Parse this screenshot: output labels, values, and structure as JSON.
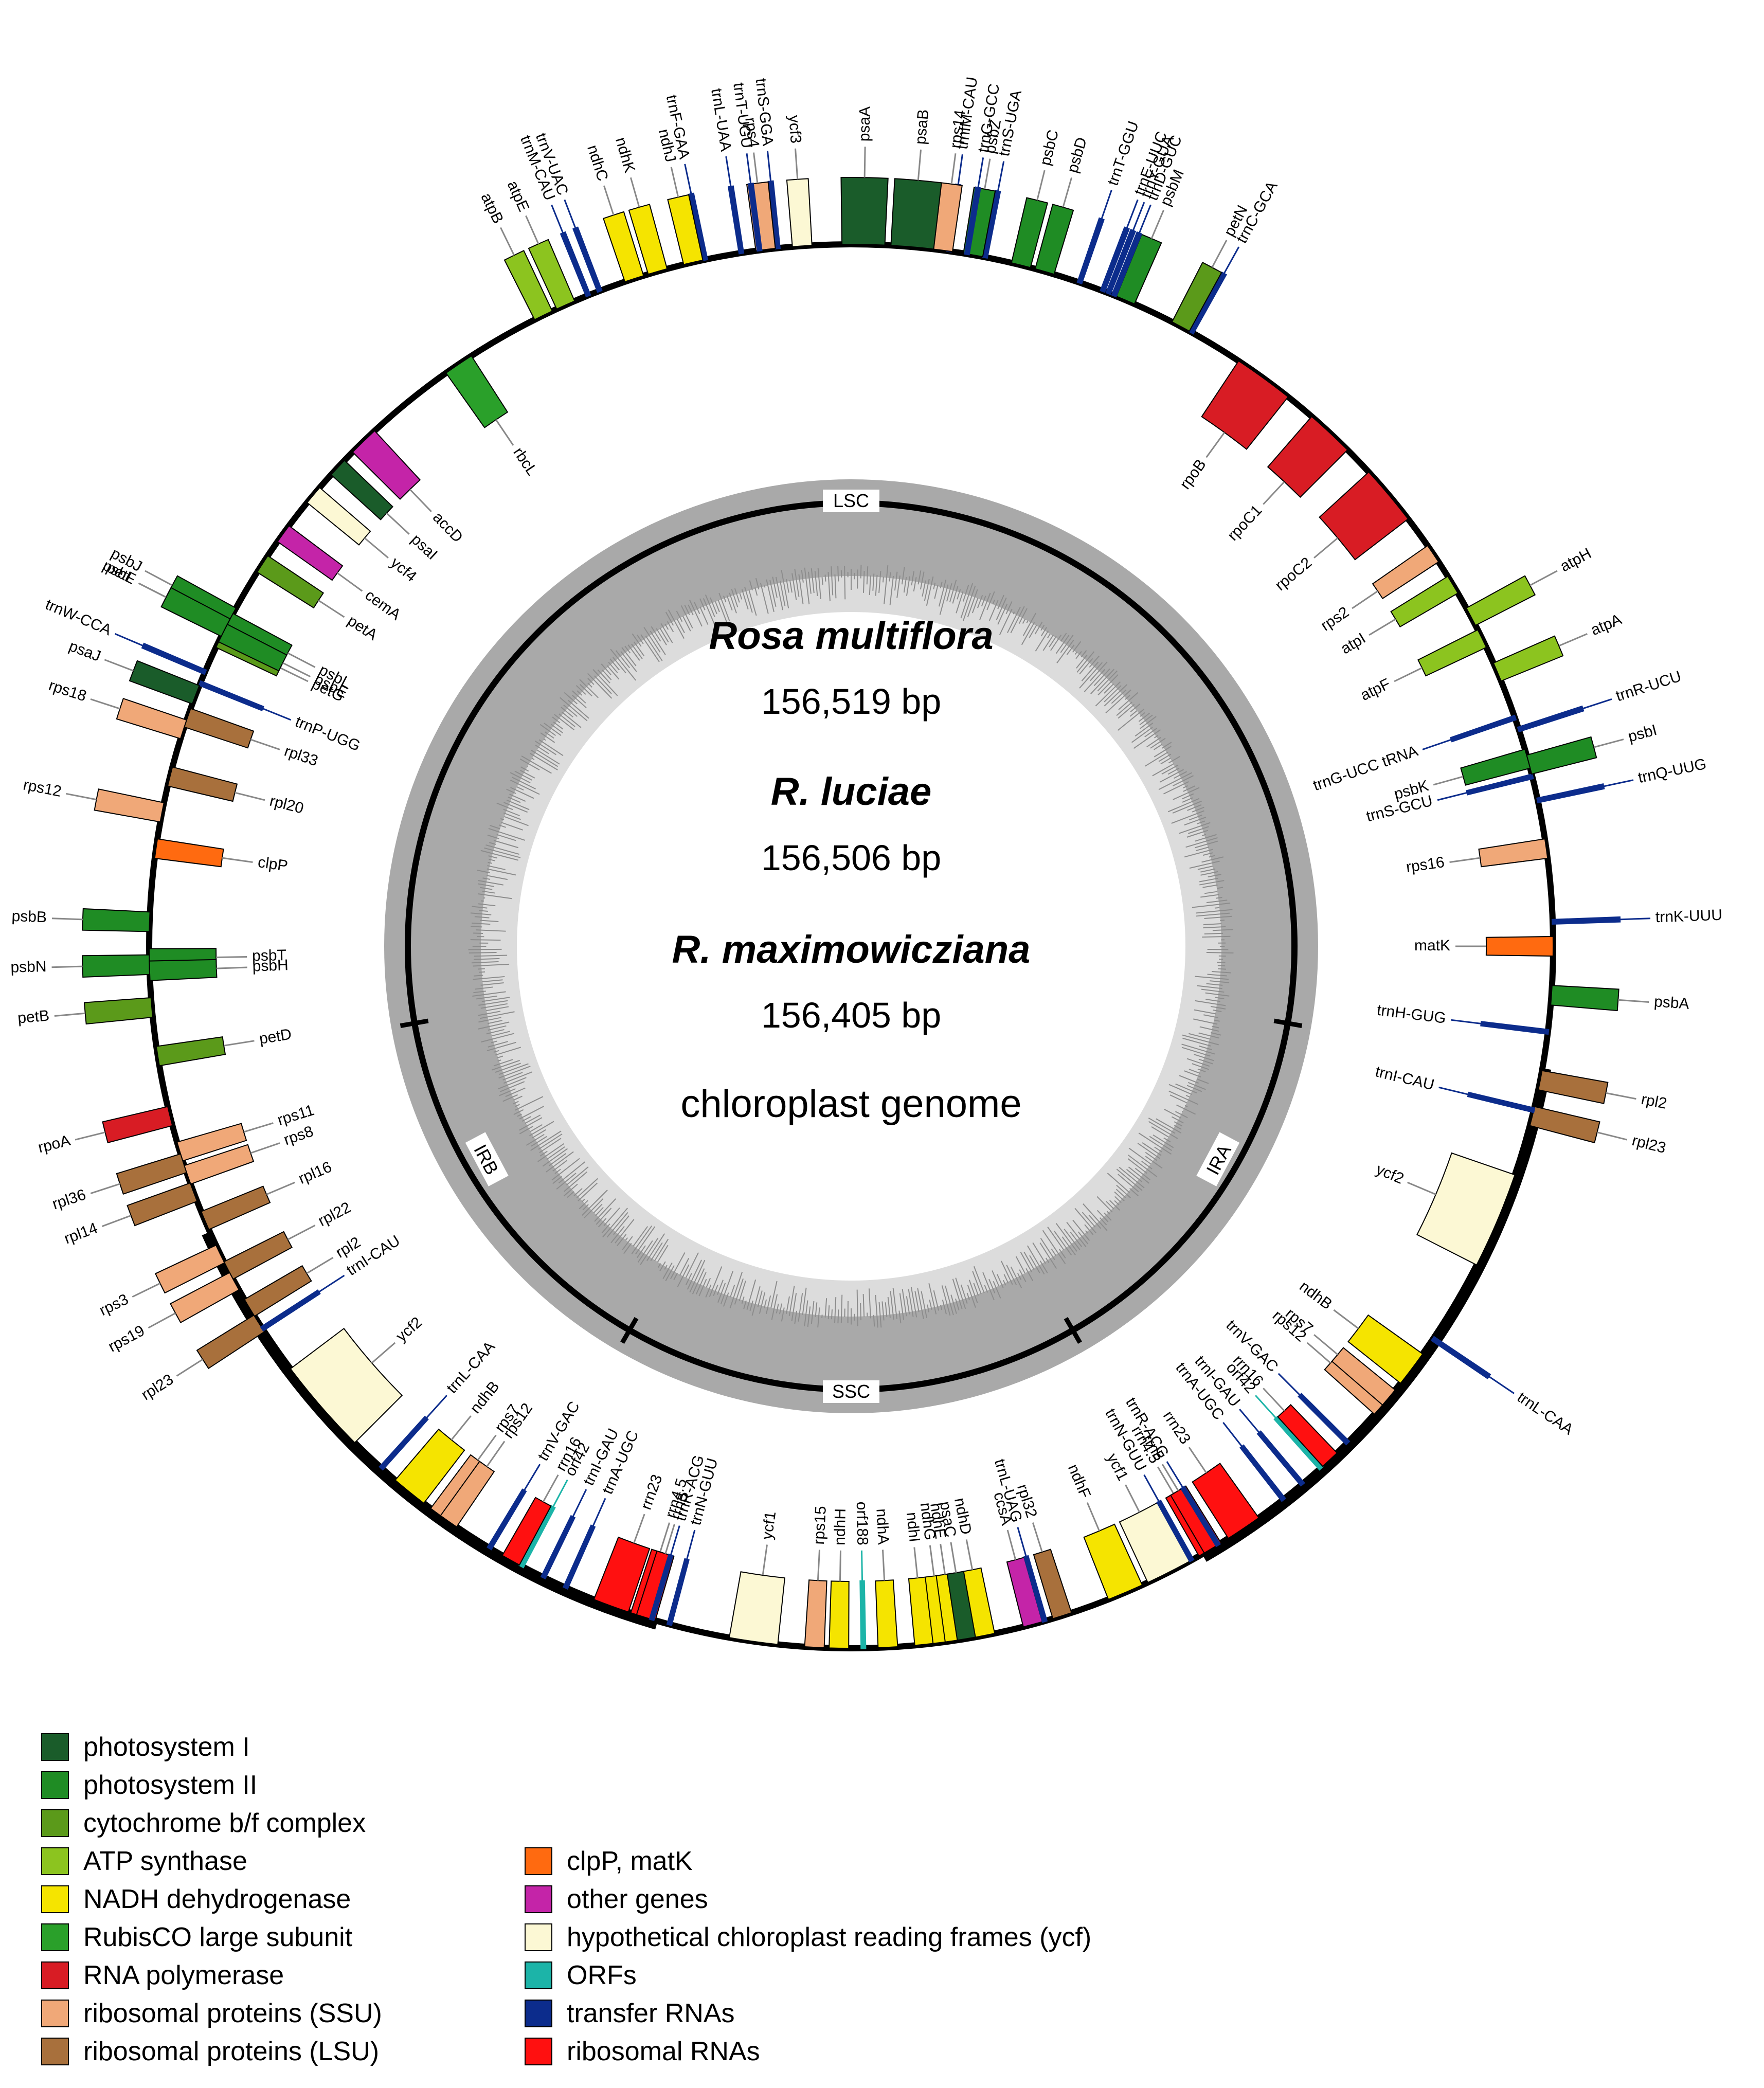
{
  "figure": {
    "species": [
      {
        "name": "Rosa multiflora",
        "size": "156,519 bp"
      },
      {
        "name": "R. luciae",
        "size": "156,506 bp"
      },
      {
        "name": "R. maximowicziana",
        "size": "156,405 bp"
      }
    ],
    "subtitle": "chloroplast genome",
    "regions": {
      "lsc": "LSC",
      "ssc": "SSC",
      "ira": "IRA",
      "irb": "IRB"
    }
  },
  "categories": {
    "psi": {
      "label": "photosystem I",
      "color": "#1a5c2a"
    },
    "psii": {
      "label": "photosystem II",
      "color": "#1f8c24"
    },
    "cyt": {
      "label": "cytochrome b/f complex",
      "color": "#5b9a1a"
    },
    "atp": {
      "label": "ATP synthase",
      "color": "#8cc41f"
    },
    "ndh": {
      "label": "NADH dehydrogenase",
      "color": "#f5e400"
    },
    "rbc": {
      "label": "RubisCO large subunit",
      "color": "#2aa02a"
    },
    "rpo": {
      "label": "RNA polymerase",
      "color": "#d81c24"
    },
    "ssu": {
      "label": "ribosomal proteins (SSU)",
      "color": "#f0a878"
    },
    "lsu": {
      "label": "ribosomal proteins (LSU)",
      "color": "#a8703c"
    },
    "clp": {
      "label": "clpP, matK",
      "color": "#ff6a10"
    },
    "oth": {
      "label": "other genes",
      "color": "#c424a8"
    },
    "ycf": {
      "label": "hypothetical chloroplast reading frames (ycf)",
      "color": "#fcf8d4"
    },
    "orf": {
      "label": "ORFs",
      "color": "#1cb4a8"
    },
    "trna": {
      "label": "transfer RNAs",
      "color": "#0c2c8c"
    },
    "rrna": {
      "label": "ribosomal RNAs",
      "color": "#ff1010"
    }
  },
  "legend_columns": [
    [
      "psi",
      "psii",
      "cyt",
      "atp",
      "ndh",
      "rbc",
      "rpo",
      "ssu",
      "lsu"
    ],
    [
      "clp",
      "oth",
      "ycf",
      "orf",
      "trna",
      "rrna"
    ]
  ],
  "genes": [
    {
      "name": "trnL-UAA",
      "cat": "trna",
      "deg": 351
    },
    {
      "name": "trnF-GAA",
      "cat": "trna",
      "deg": 348
    },
    {
      "name": "ndhJ",
      "cat": "ndh",
      "deg": 347
    },
    {
      "name": "ndhK",
      "cat": "ndh",
      "deg": 344
    },
    {
      "name": "ndhC",
      "cat": "ndh",
      "deg": 342
    },
    {
      "name": "trnV-UAC",
      "cat": "trna",
      "deg": 339
    },
    {
      "name": "atpE",
      "cat": "atp",
      "deg": 336
    },
    {
      "name": "atpB",
      "cat": "atp",
      "deg": 334
    },
    {
      "name": "trnM-CAU",
      "cat": "trna",
      "deg": 338
    },
    {
      "name": "rbcL",
      "cat": "rbc",
      "deg": 326
    },
    {
      "name": "accD",
      "cat": "oth",
      "deg": 316
    },
    {
      "name": "psaI",
      "cat": "psi",
      "deg": 313
    },
    {
      "name": "ycf4",
      "cat": "ycf",
      "deg": 310
    },
    {
      "name": "cemA",
      "cat": "oth",
      "deg": 306
    },
    {
      "name": "petA",
      "cat": "cyt",
      "deg": 303
    },
    {
      "name": "petL",
      "cat": "cyt",
      "deg": 297
    },
    {
      "name": "petG",
      "cat": "cyt",
      "deg": 296
    },
    {
      "name": "psbJ",
      "cat": "psii",
      "deg": 298
    },
    {
      "name": "psbL",
      "cat": "psii",
      "deg": 297.5
    },
    {
      "name": "psbF",
      "cat": "psii",
      "deg": 297
    },
    {
      "name": "psbE",
      "cat": "psii",
      "deg": 296.5
    },
    {
      "name": "trnW-CCA",
      "cat": "trna",
      "deg": 293
    },
    {
      "name": "trnP-UGG",
      "cat": "trna",
      "deg": 292
    },
    {
      "name": "psaJ",
      "cat": "psi",
      "deg": 291
    },
    {
      "name": "rpl33",
      "cat": "lsu",
      "deg": 289
    },
    {
      "name": "rps18",
      "cat": "ssu",
      "deg": 288
    },
    {
      "name": "rpl20",
      "cat": "lsu",
      "deg": 284
    },
    {
      "name": "rps12",
      "cat": "ssu",
      "deg": 281
    },
    {
      "name": "clpP",
      "cat": "clp",
      "deg": 278
    },
    {
      "name": "psbB",
      "cat": "psii",
      "deg": 272
    },
    {
      "name": "psbT",
      "cat": "psii",
      "deg": 269
    },
    {
      "name": "psbN",
      "cat": "psii",
      "deg": 268.5
    },
    {
      "name": "psbH",
      "cat": "psii",
      "deg": 268
    },
    {
      "name": "petB",
      "cat": "cyt",
      "deg": 265
    },
    {
      "name": "petD",
      "cat": "cyt",
      "deg": 261
    },
    {
      "name": "rpoA",
      "cat": "rpo",
      "deg": 256
    },
    {
      "name": "rps11",
      "cat": "ssu",
      "deg": 253
    },
    {
      "name": "rpl36",
      "cat": "lsu",
      "deg": 252
    },
    {
      "name": "rps8",
      "cat": "ssu",
      "deg": 251
    },
    {
      "name": "rpl14",
      "cat": "lsu",
      "deg": 249.5
    },
    {
      "name": "rpl16",
      "cat": "lsu",
      "deg": 247
    },
    {
      "name": "rps3",
      "cat": "ssu",
      "deg": 244
    },
    {
      "name": "rpl22",
      "cat": "lsu",
      "deg": 242.5
    },
    {
      "name": "rps19",
      "cat": "ssu",
      "deg": 241.5
    },
    {
      "name": "rpl2",
      "cat": "lsu",
      "deg": 239
    },
    {
      "name": "rpl23",
      "cat": "lsu",
      "deg": 237.5
    },
    {
      "name": "trnI-CAU",
      "cat": "trna",
      "deg": 237
    },
    {
      "name": "ycf2",
      "cat": "ycf",
      "deg": 229
    },
    {
      "name": "trnL-CAA",
      "cat": "trna",
      "deg": 222
    },
    {
      "name": "ndhB",
      "cat": "ndh",
      "deg": 219
    },
    {
      "name": "rps7",
      "cat": "ssu",
      "deg": 216
    },
    {
      "name": "rps12",
      "cat": "ssu",
      "deg": 215
    },
    {
      "name": "orf42",
      "cat": "orf",
      "deg": 208
    },
    {
      "name": "trnV-GAC",
      "cat": "trna",
      "deg": 211
    },
    {
      "name": "rrn16",
      "cat": "rrna",
      "deg": 209
    },
    {
      "name": "trnI-GAU",
      "cat": "trna",
      "deg": 206
    },
    {
      "name": "trnA-UGC",
      "cat": "trna",
      "deg": 204
    },
    {
      "name": "rrn23",
      "cat": "rrna",
      "deg": 200
    },
    {
      "name": "rrn4.5",
      "cat": "rrna",
      "deg": 197.5
    },
    {
      "name": "rrn5",
      "cat": "rrna",
      "deg": 197
    },
    {
      "name": "trnR-ACG",
      "cat": "trna",
      "deg": 196.5
    },
    {
      "name": "trnN-GUU",
      "cat": "trna",
      "deg": 195
    },
    {
      "name": "ycf1",
      "cat": "ycf",
      "deg": 188
    },
    {
      "name": "rps15",
      "cat": "ssu",
      "deg": 183
    },
    {
      "name": "ndhH",
      "cat": "ndh",
      "deg": 181
    },
    {
      "name": "orf188",
      "cat": "orf",
      "deg": 179
    },
    {
      "name": "ndhA",
      "cat": "ndh",
      "deg": 177
    },
    {
      "name": "ndhI",
      "cat": "ndh",
      "deg": 174
    },
    {
      "name": "ndhG",
      "cat": "ndh",
      "deg": 172.5
    },
    {
      "name": "ndhE",
      "cat": "ndh",
      "deg": 171.5
    },
    {
      "name": "psaC",
      "cat": "psi",
      "deg": 170.5
    },
    {
      "name": "ndhD",
      "cat": "ndh",
      "deg": 169
    },
    {
      "name": "ccsA",
      "cat": "oth",
      "deg": 165
    },
    {
      "name": "trnL-UAG",
      "cat": "trna",
      "deg": 164
    },
    {
      "name": "rpl32",
      "cat": "lsu",
      "deg": 162.5
    },
    {
      "name": "ndhF",
      "cat": "ndh",
      "deg": 157
    },
    {
      "name": "ycf1",
      "cat": "ycf",
      "deg": 153
    },
    {
      "name": "trnN-GUU",
      "cat": "trna",
      "deg": 151
    },
    {
      "name": "rrn4.5",
      "cat": "rrna",
      "deg": 149.5
    },
    {
      "name": "rrn5",
      "cat": "rrna",
      "deg": 149
    },
    {
      "name": "trnR-ACG",
      "cat": "trna",
      "deg": 148.5
    },
    {
      "name": "rrn23",
      "cat": "rrna",
      "deg": 146
    },
    {
      "name": "trnA-UGC",
      "cat": "trna",
      "deg": 142
    },
    {
      "name": "trnI-GAU",
      "cat": "trna",
      "deg": 140
    },
    {
      "name": "orf42",
      "cat": "orf",
      "deg": 138
    },
    {
      "name": "rrn16",
      "cat": "rrna",
      "deg": 137
    },
    {
      "name": "trnV-GAC",
      "cat": "trna",
      "deg": 135
    },
    {
      "name": "rps12",
      "cat": "ssu",
      "deg": 131
    },
    {
      "name": "rps7",
      "cat": "ssu",
      "deg": 130
    },
    {
      "name": "ndhB",
      "cat": "ndh",
      "deg": 127
    },
    {
      "name": "trnL-CAA",
      "cat": "trna",
      "deg": 124
    },
    {
      "name": "ycf2",
      "cat": "ycf",
      "deg": 113
    },
    {
      "name": "rpl23",
      "cat": "lsu",
      "deg": 104
    },
    {
      "name": "trnI-CAU",
      "cat": "trna",
      "deg": 103.5
    },
    {
      "name": "rpl2",
      "cat": "lsu",
      "deg": 101
    },
    {
      "name": "trnH-GUG",
      "cat": "trna",
      "deg": 97
    },
    {
      "name": "psbA",
      "cat": "psii",
      "deg": 94
    },
    {
      "name": "matK",
      "cat": "clp",
      "deg": 90
    },
    {
      "name": "trnK-UUU",
      "cat": "trna",
      "deg": 88
    },
    {
      "name": "rps16",
      "cat": "ssu",
      "deg": 82
    },
    {
      "name": "trnQ-UUG",
      "cat": "trna",
      "deg": 78
    },
    {
      "name": "trnS-GCU",
      "cat": "trna",
      "deg": 76
    },
    {
      "name": "psbI",
      "cat": "psii",
      "deg": 75
    },
    {
      "name": "psbK",
      "cat": "psii",
      "deg": 74.5
    },
    {
      "name": "trnR-UCU",
      "cat": "trna",
      "deg": 72
    },
    {
      "name": "trnG-UCC tRNA",
      "cat": "trna",
      "deg": 71
    },
    {
      "name": "atpA",
      "cat": "atp",
      "deg": 67
    },
    {
      "name": "atpF",
      "cat": "atp",
      "deg": 64
    },
    {
      "name": "atpH",
      "cat": "atp",
      "deg": 62
    },
    {
      "name": "atpI",
      "cat": "atp",
      "deg": 59
    },
    {
      "name": "rps2",
      "cat": "ssu",
      "deg": 56
    },
    {
      "name": "rpoC2",
      "cat": "rpo",
      "deg": 50
    },
    {
      "name": "rpoC1",
      "cat": "rpo",
      "deg": 43
    },
    {
      "name": "rpoB",
      "cat": "rpo",
      "deg": 36
    },
    {
      "name": "trnC-GCA",
      "cat": "trna",
      "deg": 29
    },
    {
      "name": "petN",
      "cat": "cyt",
      "deg": 28
    },
    {
      "name": "psbM",
      "cat": "psii",
      "deg": 23
    },
    {
      "name": "trnD-GUC",
      "cat": "trna",
      "deg": 22
    },
    {
      "name": "trnY-GUA",
      "cat": "trna",
      "deg": 21.5
    },
    {
      "name": "trnE-UUC",
      "cat": "trna",
      "deg": 21
    },
    {
      "name": "trnT-GGU",
      "cat": "trna",
      "deg": 19
    },
    {
      "name": "psbD",
      "cat": "psii",
      "deg": 16
    },
    {
      "name": "psbC",
      "cat": "psii",
      "deg": 14
    },
    {
      "name": "trnS-UGA",
      "cat": "trna",
      "deg": 11
    },
    {
      "name": "psbZ",
      "cat": "psii",
      "deg": 10
    },
    {
      "name": "trnG-GCC",
      "cat": "trna",
      "deg": 9.5
    },
    {
      "name": "trnfM-CAU",
      "cat": "trna",
      "deg": 8
    },
    {
      "name": "rps14",
      "cat": "ssu",
      "deg": 7.5
    },
    {
      "name": "psaB",
      "cat": "psi",
      "deg": 5
    },
    {
      "name": "psaA",
      "cat": "psi",
      "deg": 1
    },
    {
      "name": "ycf3",
      "cat": "ycf",
      "deg": 356
    },
    {
      "name": "trnS-GGA",
      "cat": "trna",
      "deg": 354
    },
    {
      "name": "rps4",
      "cat": "ssu",
      "deg": 353
    },
    {
      "name": "trnT-UGU",
      "cat": "trna",
      "deg": 352.5
    }
  ]
}
